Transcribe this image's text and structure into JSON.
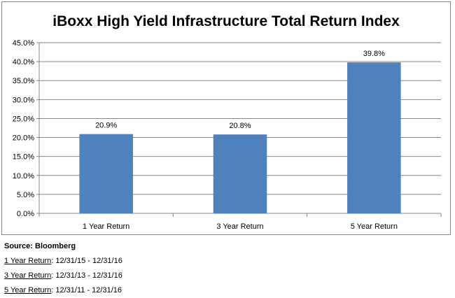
{
  "chart_data": {
    "type": "bar",
    "title": "iBoxx High Yield Infrastructure Total Return Index",
    "categories": [
      "1 Year Return",
      "3 Year Return",
      "5 Year Return"
    ],
    "values": [
      20.9,
      20.8,
      39.8
    ],
    "data_labels": [
      "20.9%",
      "20.8%",
      "39.8%"
    ],
    "y_ticks": [
      0,
      5,
      10,
      15,
      20,
      25,
      30,
      35,
      40,
      45
    ],
    "y_tick_labels": [
      "0.0%",
      "5.0%",
      "10.0%",
      "15.0%",
      "20.0%",
      "25.0%",
      "30.0%",
      "35.0%",
      "40.0%",
      "45.0%"
    ],
    "ylim": [
      0,
      45
    ],
    "xlabel": "",
    "ylabel": "",
    "grid": true,
    "bar_color": "#4f81bd",
    "grid_color": "#868686"
  },
  "footer": {
    "source": "Source: Bloomberg",
    "periods": [
      {
        "term": "1 Year Return",
        "range": ": 12/31/15 - 12/31/16"
      },
      {
        "term": "3 Year Return",
        "range": ": 12/31/13 - 12/31/16"
      },
      {
        "term": "5 Year Return",
        "range": ": 12/31/11 - 12/31/16"
      }
    ]
  }
}
